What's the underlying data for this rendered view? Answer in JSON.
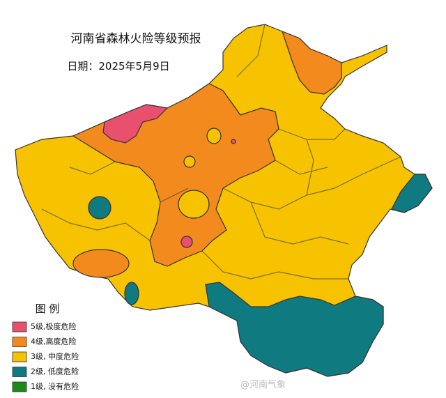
{
  "title": "河南省森林火险等级预报",
  "date": "日期：2025年5月9日",
  "legend": {
    "title": "图  例",
    "items": [
      {
        "label": "5级,极度危险",
        "color": "#e8506e"
      },
      {
        "label": "4级,高度危险",
        "color": "#f28a1e"
      },
      {
        "label": "3级, 中度危险",
        "color": "#f7c200"
      },
      {
        "label": "2级, 低度危险",
        "color": "#0f7b80"
      },
      {
        "label": "1级, 没有危险",
        "color": "#1a8a1a"
      }
    ]
  },
  "watermark": "@河南气象"
}
